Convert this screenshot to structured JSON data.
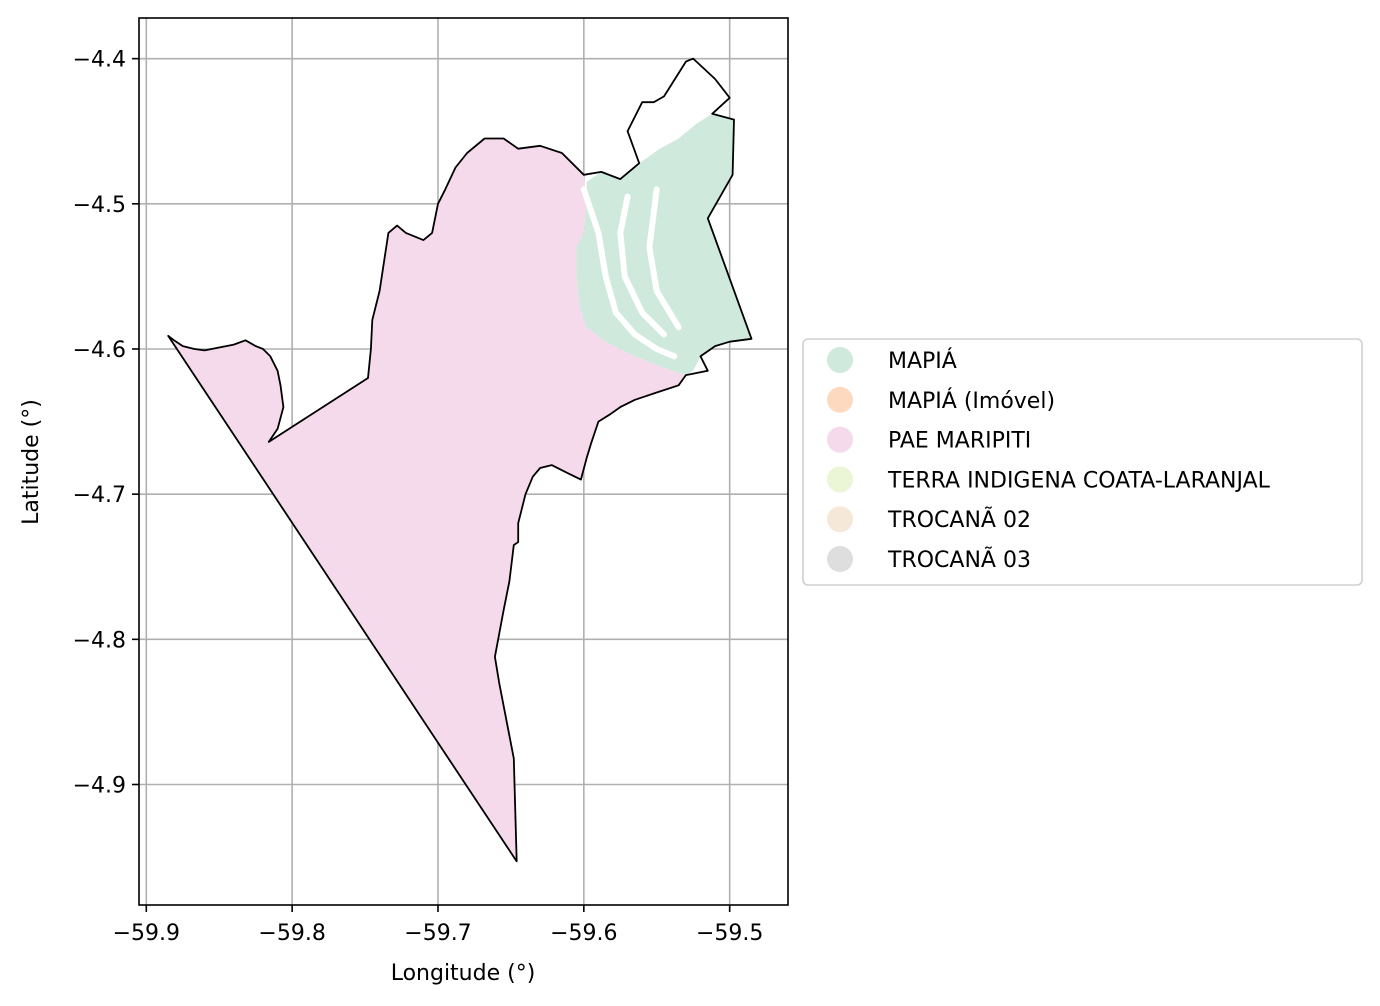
{
  "chart_data": {
    "type": "map",
    "xlabel": "Longitude (°)",
    "ylabel": "Latitude (°)",
    "xlim": [
      -59.905,
      -59.46
    ],
    "ylim": [
      -4.983,
      -4.372
    ],
    "grid": true,
    "x_ticks": [
      {
        "value": -59.9,
        "label": "−59.9"
      },
      {
        "value": -59.8,
        "label": "−59.8"
      },
      {
        "value": -59.7,
        "label": "−59.7"
      },
      {
        "value": -59.6,
        "label": "−59.6"
      },
      {
        "value": -59.5,
        "label": "−59.5"
      }
    ],
    "y_ticks": [
      {
        "value": -4.4,
        "label": "−4.4"
      },
      {
        "value": -4.5,
        "label": "−4.5"
      },
      {
        "value": -4.6,
        "label": "−4.6"
      },
      {
        "value": -4.7,
        "label": "−4.7"
      },
      {
        "value": -4.8,
        "label": "−4.8"
      },
      {
        "value": -4.9,
        "label": "−4.9"
      }
    ],
    "legend_position": "right-center",
    "legend": [
      {
        "label": "MAPIÁ",
        "color": "#cfeadc"
      },
      {
        "label": "MAPIÁ (Imóvel)",
        "color": "#fdd9c0"
      },
      {
        "label": "PAE MARIPITI",
        "color": "#f5daeb"
      },
      {
        "label": "TERRA INDIGENA COATA-LARANJAL",
        "color": "#eaf6d5"
      },
      {
        "label": "TROCANÃ 02",
        "color": "#f6e8d8"
      },
      {
        "label": "TROCANÃ 03",
        "color": "#dedede"
      }
    ],
    "regions": [
      {
        "name": "PAE MARIPITI",
        "color": "#f5daeb",
        "coords": [
          [
            -59.885,
            -4.591
          ],
          [
            -59.881,
            -4.594
          ],
          [
            -59.875,
            -4.598
          ],
          [
            -59.867,
            -4.6
          ],
          [
            -59.86,
            -4.601
          ],
          [
            -59.85,
            -4.599
          ],
          [
            -59.84,
            -4.597
          ],
          [
            -59.832,
            -4.594
          ],
          [
            -59.825,
            -4.598
          ],
          [
            -59.82,
            -4.6
          ],
          [
            -59.815,
            -4.605
          ],
          [
            -59.81,
            -4.615
          ],
          [
            -59.808,
            -4.625
          ],
          [
            -59.806,
            -4.64
          ],
          [
            -59.81,
            -4.655
          ],
          [
            -59.816,
            -4.664
          ],
          [
            -59.748,
            -4.62
          ],
          [
            -59.746,
            -4.6
          ],
          [
            -59.745,
            -4.58
          ],
          [
            -59.74,
            -4.56
          ],
          [
            -59.737,
            -4.54
          ],
          [
            -59.734,
            -4.52
          ],
          [
            -59.728,
            -4.515
          ],
          [
            -59.722,
            -4.52
          ],
          [
            -59.71,
            -4.525
          ],
          [
            -59.704,
            -4.52
          ],
          [
            -59.7,
            -4.5
          ],
          [
            -59.695,
            -4.49
          ],
          [
            -59.688,
            -4.475
          ],
          [
            -59.68,
            -4.465
          ],
          [
            -59.668,
            -4.455
          ],
          [
            -59.655,
            -4.455
          ],
          [
            -59.645,
            -4.462
          ],
          [
            -59.63,
            -4.46
          ],
          [
            -59.615,
            -4.465
          ],
          [
            -59.6,
            -4.48
          ],
          [
            -59.598,
            -4.5
          ],
          [
            -59.6,
            -4.52
          ],
          [
            -59.605,
            -4.53
          ],
          [
            -59.605,
            -4.55
          ],
          [
            -59.603,
            -4.57
          ],
          [
            -59.598,
            -4.585
          ],
          [
            -59.585,
            -4.595
          ],
          [
            -59.565,
            -4.605
          ],
          [
            -59.545,
            -4.613
          ],
          [
            -59.53,
            -4.618
          ],
          [
            -59.535,
            -4.625
          ],
          [
            -59.55,
            -4.63
          ],
          [
            -59.565,
            -4.635
          ],
          [
            -59.575,
            -4.64
          ],
          [
            -59.582,
            -4.645
          ],
          [
            -59.59,
            -4.65
          ],
          [
            -59.595,
            -4.665
          ],
          [
            -59.598,
            -4.675
          ],
          [
            -59.602,
            -4.69
          ],
          [
            -59.612,
            -4.685
          ],
          [
            -59.622,
            -4.68
          ],
          [
            -59.63,
            -4.682
          ],
          [
            -59.635,
            -4.688
          ],
          [
            -59.64,
            -4.7
          ],
          [
            -59.645,
            -4.72
          ],
          [
            -59.645,
            -4.733
          ],
          [
            -59.648,
            -4.735
          ],
          [
            -59.651,
            -4.76
          ],
          [
            -59.655,
            -4.78
          ],
          [
            -59.661,
            -4.812
          ],
          [
            -59.658,
            -4.83
          ],
          [
            -59.648,
            -4.882
          ],
          [
            -59.646,
            -4.953
          ],
          [
            -59.885,
            -4.591
          ]
        ]
      },
      {
        "name": "MAPIÁ",
        "color": "#cfeadc",
        "coords": [
          [
            -59.598,
            -4.485
          ],
          [
            -59.588,
            -4.478
          ],
          [
            -59.575,
            -4.483
          ],
          [
            -59.562,
            -4.472
          ],
          [
            -59.548,
            -4.462
          ],
          [
            -59.535,
            -4.455
          ],
          [
            -59.523,
            -4.445
          ],
          [
            -59.512,
            -4.438
          ],
          [
            -59.497,
            -4.442
          ],
          [
            -59.498,
            -4.48
          ],
          [
            -59.515,
            -4.51
          ],
          [
            -59.485,
            -4.593
          ],
          [
            -59.5,
            -4.595
          ],
          [
            -59.51,
            -4.598
          ],
          [
            -59.52,
            -4.605
          ],
          [
            -59.525,
            -4.615
          ],
          [
            -59.53,
            -4.618
          ],
          [
            -59.545,
            -4.613
          ],
          [
            -59.565,
            -4.605
          ],
          [
            -59.585,
            -4.595
          ],
          [
            -59.598,
            -4.585
          ],
          [
            -59.603,
            -4.57
          ],
          [
            -59.605,
            -4.55
          ],
          [
            -59.605,
            -4.53
          ],
          [
            -59.6,
            -4.52
          ],
          [
            -59.598,
            -4.5
          ],
          [
            -59.598,
            -4.485
          ]
        ]
      }
    ],
    "boundary": [
      [
        -59.885,
        -4.591
      ],
      [
        -59.881,
        -4.594
      ],
      [
        -59.875,
        -4.598
      ],
      [
        -59.867,
        -4.6
      ],
      [
        -59.86,
        -4.601
      ],
      [
        -59.85,
        -4.599
      ],
      [
        -59.84,
        -4.597
      ],
      [
        -59.832,
        -4.594
      ],
      [
        -59.825,
        -4.598
      ],
      [
        -59.82,
        -4.6
      ],
      [
        -59.815,
        -4.605
      ],
      [
        -59.81,
        -4.615
      ],
      [
        -59.808,
        -4.625
      ],
      [
        -59.806,
        -4.64
      ],
      [
        -59.81,
        -4.655
      ],
      [
        -59.816,
        -4.664
      ],
      [
        -59.748,
        -4.62
      ],
      [
        -59.746,
        -4.6
      ],
      [
        -59.745,
        -4.58
      ],
      [
        -59.74,
        -4.56
      ],
      [
        -59.737,
        -4.54
      ],
      [
        -59.734,
        -4.52
      ],
      [
        -59.728,
        -4.515
      ],
      [
        -59.722,
        -4.52
      ],
      [
        -59.71,
        -4.525
      ],
      [
        -59.704,
        -4.52
      ],
      [
        -59.7,
        -4.5
      ],
      [
        -59.695,
        -4.49
      ],
      [
        -59.688,
        -4.475
      ],
      [
        -59.68,
        -4.465
      ],
      [
        -59.668,
        -4.455
      ],
      [
        -59.655,
        -4.455
      ],
      [
        -59.645,
        -4.462
      ],
      [
        -59.63,
        -4.46
      ],
      [
        -59.615,
        -4.465
      ],
      [
        -59.6,
        -4.48
      ],
      [
        -59.588,
        -4.478
      ],
      [
        -59.575,
        -4.483
      ],
      [
        -59.562,
        -4.472
      ],
      [
        -59.57,
        -4.45
      ],
      [
        -59.56,
        -4.43
      ],
      [
        -59.552,
        -4.43
      ],
      [
        -59.545,
        -4.426
      ],
      [
        -59.53,
        -4.402
      ],
      [
        -59.525,
        -4.4
      ],
      [
        -59.51,
        -4.414
      ],
      [
        -59.5,
        -4.427
      ],
      [
        -59.512,
        -4.438
      ],
      [
        -59.497,
        -4.442
      ],
      [
        -59.498,
        -4.48
      ],
      [
        -59.515,
        -4.51
      ],
      [
        -59.485,
        -4.593
      ],
      [
        -59.5,
        -4.595
      ],
      [
        -59.51,
        -4.598
      ],
      [
        -59.52,
        -4.605
      ],
      [
        -59.515,
        -4.615
      ],
      [
        -59.53,
        -4.618
      ],
      [
        -59.535,
        -4.625
      ],
      [
        -59.55,
        -4.63
      ],
      [
        -59.565,
        -4.635
      ],
      [
        -59.575,
        -4.64
      ],
      [
        -59.582,
        -4.645
      ],
      [
        -59.59,
        -4.65
      ],
      [
        -59.595,
        -4.665
      ],
      [
        -59.598,
        -4.675
      ],
      [
        -59.602,
        -4.69
      ],
      [
        -59.612,
        -4.685
      ],
      [
        -59.622,
        -4.68
      ],
      [
        -59.63,
        -4.682
      ],
      [
        -59.635,
        -4.688
      ],
      [
        -59.64,
        -4.7
      ],
      [
        -59.645,
        -4.72
      ],
      [
        -59.645,
        -4.733
      ],
      [
        -59.648,
        -4.735
      ],
      [
        -59.651,
        -4.76
      ],
      [
        -59.655,
        -4.78
      ],
      [
        -59.661,
        -4.812
      ],
      [
        -59.658,
        -4.83
      ],
      [
        -59.648,
        -4.882
      ],
      [
        -59.646,
        -4.953
      ],
      [
        -59.885,
        -4.591
      ]
    ],
    "water_channels": [
      [
        [
          -59.6,
          -4.49
        ],
        [
          -59.59,
          -4.52
        ],
        [
          -59.585,
          -4.55
        ],
        [
          -59.578,
          -4.575
        ],
        [
          -59.565,
          -4.59
        ],
        [
          -59.55,
          -4.6
        ],
        [
          -59.538,
          -4.605
        ]
      ],
      [
        [
          -59.57,
          -4.495
        ],
        [
          -59.575,
          -4.52
        ],
        [
          -59.572,
          -4.55
        ],
        [
          -59.56,
          -4.575
        ],
        [
          -59.545,
          -4.59
        ]
      ],
      [
        [
          -59.55,
          -4.49
        ],
        [
          -59.555,
          -4.53
        ],
        [
          -59.55,
          -4.56
        ],
        [
          -59.535,
          -4.585
        ]
      ]
    ]
  }
}
